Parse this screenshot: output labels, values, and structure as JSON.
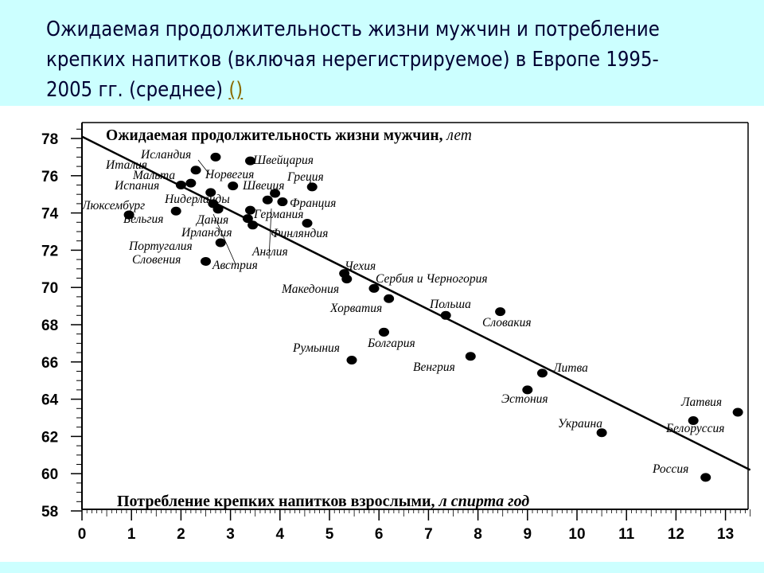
{
  "slide": {
    "title": "Ожидаемая продолжительность жизни мужчин и потребление крепких напитков (включая нерегистрируемое) в Европе 1995-2005 гг. (среднее)",
    "link_text": "()",
    "colors": {
      "band": "#ccffff",
      "title": "#000033",
      "link": "#8a6a00"
    }
  },
  "chart_data": {
    "type": "scatter",
    "title": "Ожидаемая продолжительность жизни мужчин, лет",
    "xlabel": "Потребление крепких напитков взрослыми, л спирта год",
    "ylabel": "",
    "xlim": [
      0,
      13.5
    ],
    "ylim": [
      58,
      78.8
    ],
    "x_ticks": [
      0,
      1,
      2,
      3,
      4,
      5,
      6,
      7,
      8,
      9,
      10,
      11,
      12,
      13
    ],
    "y_ticks": [
      58,
      60,
      62,
      64,
      66,
      68,
      70,
      72,
      74,
      76,
      78
    ],
    "grid": false,
    "trendline": {
      "x": [
        0,
        13.5
      ],
      "y": [
        78.1,
        60.2
      ]
    },
    "points": [
      {
        "label": "Исландия",
        "x": 2.7,
        "y": 77.0
      },
      {
        "label": "Швеция",
        "x": 3.4,
        "y": 76.8
      },
      {
        "label": "Швейцария",
        "x": 2.3,
        "y": 76.3
      },
      {
        "label": "Италия",
        "x": 2.2,
        "y": 75.6
      },
      {
        "label": "Норвегия",
        "x": 2.6,
        "y": 75.1
      },
      {
        "label": "Мальта",
        "x": 2.0,
        "y": 75.5
      },
      {
        "label": "Испания",
        "x": 3.05,
        "y": 75.45
      },
      {
        "label": "Греция",
        "x": 4.65,
        "y": 75.4
      },
      {
        "label": "Нидерланды",
        "x": 3.75,
        "y": 74.7
      },
      {
        "label": "Франция",
        "x": 3.9,
        "y": 75.05
      },
      {
        "label": "Франция",
        "x": 4.05,
        "y": 74.6
      },
      {
        "label": "Люксембург",
        "x": 0.95,
        "y": 73.9
      },
      {
        "label": "Бельгия",
        "x": 1.9,
        "y": 74.1
      },
      {
        "label": "Дания",
        "x": 2.75,
        "y": 74.2
      },
      {
        "label": "Германия",
        "x": 3.4,
        "y": 74.15
      },
      {
        "label": "Ирландия",
        "x": 3.35,
        "y": 73.7
      },
      {
        "label": "Финляндия",
        "x": 3.45,
        "y": 73.35
      },
      {
        "label": "Англия",
        "x": 4.55,
        "y": 73.45
      },
      {
        "label": "Португалия",
        "x": 2.8,
        "y": 72.4
      },
      {
        "label": "Словения",
        "x": 2.5,
        "y": 71.4
      },
      {
        "label": "Австрия",
        "x": 2.65,
        "y": 74.5
      },
      {
        "label": "Чехия",
        "x": 5.3,
        "y": 70.75
      },
      {
        "label": "Чехия",
        "x": 5.35,
        "y": 70.45
      },
      {
        "label": "Македония",
        "x": 5.9,
        "y": 69.95
      },
      {
        "label": "Сербия и Черногория",
        "x": 6.2,
        "y": 69.4
      },
      {
        "label": "Хорватия",
        "x": 6.1,
        "y": 67.6
      },
      {
        "label": "Польша",
        "x": 7.35,
        "y": 68.5
      },
      {
        "label": "Словакия",
        "x": 8.45,
        "y": 68.7
      },
      {
        "label": "Румыния",
        "x": 5.45,
        "y": 66.1
      },
      {
        "label": "Болгария",
        "x": 6.1,
        "y": 67.6
      },
      {
        "label": "Венгрия",
        "x": 7.85,
        "y": 66.3
      },
      {
        "label": "Литва",
        "x": 9.3,
        "y": 65.4
      },
      {
        "label": "Эстония",
        "x": 9.0,
        "y": 64.5
      },
      {
        "label": "Украина",
        "x": 10.5,
        "y": 62.2
      },
      {
        "label": "Латвия",
        "x": 13.25,
        "y": 63.3
      },
      {
        "label": "Белоруссия",
        "x": 12.35,
        "y": 62.85
      },
      {
        "label": "Россия",
        "x": 12.6,
        "y": 59.8
      }
    ],
    "annotations": [
      "Исландия",
      "Швейцария",
      "Италия",
      "Мальта",
      "Норвегия",
      "Испания",
      "Швеция",
      "Греция",
      "Нидерланды",
      "Франция",
      "Люксембург",
      "Бельгия",
      "Дания",
      "Германия",
      "Ирландия",
      "Финляндия",
      "Португалия",
      "Англия",
      "Словения",
      "Австрия",
      "Чехия",
      "Сербия и Черногория",
      "Македония",
      "Хорватия",
      "Польша",
      "Словакия",
      "Болгария",
      "Румыния",
      "Венгрия",
      "Литва",
      "Эстония",
      "Латвия",
      "Украина",
      "Белоруссия",
      "Россия"
    ]
  }
}
